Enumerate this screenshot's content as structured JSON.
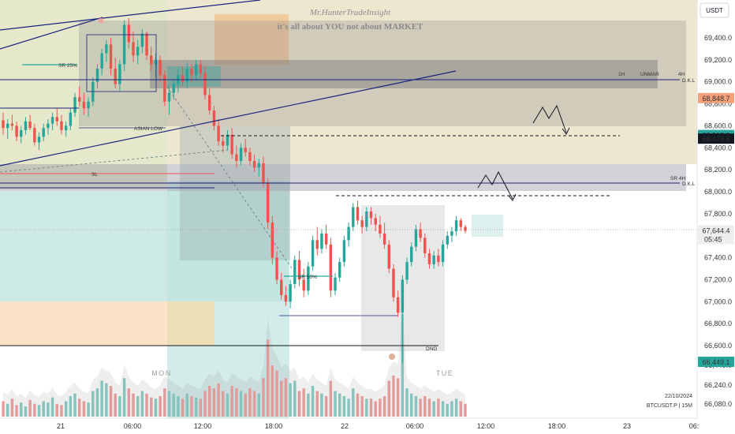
{
  "watermark": {
    "author": "Mr.HunterTradeInsight",
    "tagline": "it's all about YOU not about MARKET"
  },
  "currency_button": "USDT",
  "symbol_info": {
    "date": "22/10/2024",
    "ticker": "BTCUSDT.P | 15M"
  },
  "day_labels": {
    "mon": "MON",
    "tue": "TUE"
  },
  "annotations": {
    "sr25": "SR 25%",
    "asian_low": "ASIAN LOW",
    "sl": "SL",
    "sr50": "SR 50%",
    "dkl1": "D.K.L",
    "dkl2": "D.K.L",
    "dng": "DNG",
    "box_1h": "1H",
    "box_4h": "4H",
    "box_unmark": "UNMAR",
    "box_4h_2": "SR 4H"
  },
  "price_tags": [
    {
      "label": "68,848.7",
      "price": 68848.7,
      "color": "#f5a07a",
      "text_color": "#7a2e0a"
    },
    {
      "label": "68,512.8",
      "price": 68512.8,
      "color": "#26a69a",
      "text_color": "#ffffff"
    },
    {
      "label": "68,479.8",
      "price": 68479.8,
      "color": "#131722",
      "text_color": "#ffffff"
    },
    {
      "label": "67,644.4",
      "price": 67644.4,
      "color": "#eeeeee",
      "text_color": "#131722",
      "sub": "05:45"
    },
    {
      "label": "66,449.1",
      "price": 66449.1,
      "color": "#26a69a",
      "text_color": "#ffffff"
    }
  ],
  "colors": {
    "up": "#26a69a",
    "down": "#ef5350",
    "trendline": "#1a237e",
    "zone_olive": "#e8dfc0",
    "zone_gray": "#8c8c8c",
    "zone_teal": "#b2dfdb"
  },
  "chart_data": {
    "type": "candlestick",
    "symbol": "BTCUSDT.P",
    "timeframe": "15M",
    "y_ticks": [
      69400,
      69200,
      69000,
      68800,
      68600,
      68400,
      68200,
      68000,
      67800,
      67600,
      67400,
      67200,
      67000,
      66800,
      66600,
      66440,
      66240,
      66080
    ],
    "y_tick_labels": [
      "69,400.0",
      "69,200.0",
      "69,000.0",
      "68,800.0",
      "68,600.0",
      "68,400.0",
      "68,200.0",
      "68,000.0",
      "67,800.0",
      "67,600.0",
      "67,400.0",
      "67,200.0",
      "67,000.0",
      "66,800.0",
      "66,600.0",
      "66,440.0",
      "66,240.0",
      "66,080.0"
    ],
    "x_tick_labels": [
      "21",
      "06:00",
      "12:00",
      "18:00",
      "22",
      "06:00",
      "12:00",
      "18:00",
      "23",
      "06:"
    ],
    "candles": [
      [
        68650,
        68720,
        68520,
        68580
      ],
      [
        68580,
        68660,
        68480,
        68620
      ],
      [
        68620,
        68700,
        68560,
        68600
      ],
      [
        68600,
        68640,
        68460,
        68500
      ],
      [
        68500,
        68600,
        68440,
        68560
      ],
      [
        68560,
        68680,
        68520,
        68640
      ],
      [
        68640,
        68700,
        68560,
        68580
      ],
      [
        68580,
        68620,
        68420,
        68450
      ],
      [
        68450,
        68540,
        68380,
        68500
      ],
      [
        68500,
        68620,
        68460,
        68580
      ],
      [
        68580,
        68660,
        68520,
        68620
      ],
      [
        68620,
        68720,
        68560,
        68680
      ],
      [
        68680,
        68760,
        68600,
        68640
      ],
      [
        68640,
        68700,
        68520,
        68560
      ],
      [
        68560,
        68640,
        68500,
        68600
      ],
      [
        68600,
        68760,
        68560,
        68720
      ],
      [
        68720,
        68900,
        68680,
        68860
      ],
      [
        68860,
        68960,
        68780,
        68820
      ],
      [
        68820,
        68900,
        68700,
        68760
      ],
      [
        68760,
        68860,
        68680,
        68820
      ],
      [
        68820,
        69040,
        68780,
        69000
      ],
      [
        69000,
        69160,
        68940,
        69120
      ],
      [
        69120,
        69300,
        69060,
        69260
      ],
      [
        69260,
        69380,
        69180,
        69340
      ],
      [
        69340,
        69400,
        69060,
        69120
      ],
      [
        69120,
        69220,
        68940,
        68980
      ],
      [
        68980,
        69200,
        68920,
        69160
      ],
      [
        69160,
        69560,
        69100,
        69520
      ],
      [
        69520,
        69580,
        69300,
        69360
      ],
      [
        69360,
        69460,
        69180,
        69240
      ],
      [
        69240,
        69380,
        69160,
        69320
      ],
      [
        69320,
        69480,
        69260,
        69440
      ],
      [
        69440,
        69460,
        69200,
        69240
      ],
      [
        69240,
        69320,
        69100,
        69160
      ],
      [
        69160,
        69260,
        69040,
        69200
      ],
      [
        69200,
        69240,
        69000,
        69060
      ],
      [
        69060,
        69100,
        68780,
        68820
      ],
      [
        68820,
        68960,
        68700,
        68900
      ],
      [
        68900,
        69020,
        68840,
        68980
      ],
      [
        68980,
        69120,
        68900,
        69060
      ],
      [
        69060,
        69140,
        68960,
        69000
      ],
      [
        69000,
        69180,
        68940,
        69120
      ],
      [
        69120,
        69160,
        69000,
        69060
      ],
      [
        69060,
        69200,
        69020,
        69160
      ],
      [
        69160,
        69200,
        69040,
        69080
      ],
      [
        69080,
        69140,
        68840,
        68880
      ],
      [
        68880,
        68940,
        68700,
        68740
      ],
      [
        68740,
        68780,
        68560,
        68600
      ],
      [
        68600,
        68660,
        68420,
        68460
      ],
      [
        68460,
        68520,
        68360,
        68420
      ],
      [
        68420,
        68560,
        68380,
        68520
      ],
      [
        68520,
        68580,
        68300,
        68340
      ],
      [
        68340,
        68420,
        68220,
        68280
      ],
      [
        68280,
        68440,
        68240,
        68400
      ],
      [
        68400,
        68480,
        68320,
        68360
      ],
      [
        68360,
        68400,
        68240,
        68280
      ],
      [
        68280,
        68340,
        68180,
        68220
      ],
      [
        68220,
        68300,
        68140,
        68260
      ],
      [
        68260,
        68320,
        68040,
        68080
      ],
      [
        68080,
        68120,
        67660,
        67720
      ],
      [
        67720,
        67780,
        67340,
        67400
      ],
      [
        67400,
        67460,
        67160,
        67200
      ],
      [
        67200,
        67260,
        67020,
        67060
      ],
      [
        67060,
        67140,
        66960,
        67000
      ],
      [
        67000,
        67200,
        66940,
        67160
      ],
      [
        67160,
        67420,
        67120,
        67380
      ],
      [
        67380,
        67460,
        67140,
        67200
      ],
      [
        67200,
        67300,
        67040,
        67100
      ],
      [
        67100,
        67360,
        67060,
        67320
      ],
      [
        67320,
        67600,
        67280,
        67560
      ],
      [
        67560,
        67680,
        67420,
        67480
      ],
      [
        67480,
        67660,
        67440,
        67620
      ],
      [
        67620,
        67700,
        67480,
        67520
      ],
      [
        67520,
        67580,
        67040,
        67100
      ],
      [
        67100,
        67260,
        67060,
        67220
      ],
      [
        67220,
        67400,
        67180,
        67360
      ],
      [
        67360,
        67600,
        67320,
        67560
      ],
      [
        67560,
        67720,
        67500,
        67680
      ],
      [
        67680,
        67900,
        67640,
        67860
      ],
      [
        67860,
        67920,
        67700,
        67740
      ],
      [
        67740,
        67780,
        67620,
        67680
      ],
      [
        67680,
        67860,
        67640,
        67820
      ],
      [
        67820,
        67860,
        67700,
        67760
      ],
      [
        67760,
        67800,
        67640,
        67700
      ],
      [
        67700,
        67780,
        67580,
        67620
      ],
      [
        67620,
        67720,
        67480,
        67520
      ],
      [
        67520,
        67560,
        67260,
        67300
      ],
      [
        67300,
        67340,
        67000,
        67040
      ],
      [
        67040,
        67100,
        66860,
        66900
      ],
      [
        66900,
        67240,
        66440,
        67200
      ],
      [
        67200,
        67400,
        67160,
        67360
      ],
      [
        67360,
        67540,
        67320,
        67500
      ],
      [
        67500,
        67700,
        67460,
        67660
      ],
      [
        67660,
        67720,
        67540,
        67580
      ],
      [
        67580,
        67620,
        67400,
        67440
      ],
      [
        67440,
        67480,
        67300,
        67340
      ],
      [
        67340,
        67460,
        67300,
        67420
      ],
      [
        67420,
        67480,
        67320,
        67360
      ],
      [
        67360,
        67560,
        67320,
        67520
      ],
      [
        67520,
        67640,
        67480,
        67600
      ],
      [
        67600,
        67680,
        67540,
        67640
      ],
      [
        67640,
        67780,
        67600,
        67740
      ],
      [
        67740,
        67760,
        67640,
        67680
      ],
      [
        67680,
        67700,
        67620,
        67644
      ]
    ],
    "volume": [
      12,
      10,
      14,
      9,
      11,
      8,
      13,
      10,
      9,
      12,
      11,
      15,
      10,
      9,
      12,
      16,
      18,
      14,
      12,
      11,
      20,
      22,
      28,
      26,
      24,
      18,
      16,
      30,
      22,
      18,
      16,
      20,
      18,
      15,
      14,
      16,
      22,
      20,
      18,
      16,
      14,
      18,
      16,
      15,
      14,
      20,
      24,
      22,
      26,
      20,
      18,
      24,
      22,
      20,
      18,
      22,
      20,
      18,
      30,
      60,
      40,
      36,
      28,
      30,
      26,
      28,
      20,
      22,
      18,
      24,
      20,
      18,
      16,
      28,
      20,
      18,
      16,
      14,
      22,
      18,
      16,
      14,
      14,
      12,
      14,
      16,
      28,
      32,
      30,
      80,
      22,
      18,
      16,
      14,
      16,
      14,
      12,
      14,
      12,
      10,
      12,
      14,
      12,
      10
    ],
    "xlabel": "",
    "ylabel": ""
  }
}
